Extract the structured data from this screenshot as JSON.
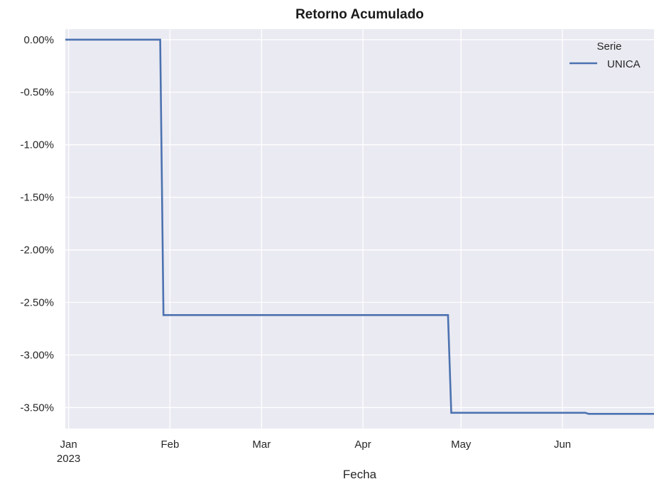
{
  "chart_data": {
    "type": "line",
    "title": "Retorno Acumulado",
    "xlabel": "Fecha",
    "ylabel": "",
    "x_ticks": [
      {
        "date": "2023-01-01",
        "label": "Jan",
        "sublabel": "2023"
      },
      {
        "date": "2023-02-01",
        "label": "Feb",
        "sublabel": ""
      },
      {
        "date": "2023-03-01",
        "label": "Mar",
        "sublabel": ""
      },
      {
        "date": "2023-04-01",
        "label": "Apr",
        "sublabel": ""
      },
      {
        "date": "2023-05-01",
        "label": "May",
        "sublabel": ""
      },
      {
        "date": "2023-06-01",
        "label": "Jun",
        "sublabel": ""
      }
    ],
    "y_ticks": [
      0.0,
      -0.5,
      -1.0,
      -1.5,
      -2.0,
      -2.5,
      -3.0,
      -3.5
    ],
    "y_tick_labels": [
      "0.00%",
      "-0.50%",
      "-1.00%",
      "-1.50%",
      "-2.00%",
      "-2.50%",
      "-3.00%",
      "-3.50%"
    ],
    "xlim": [
      "2022-12-31",
      "2023-06-29"
    ],
    "ylim": [
      -3.7,
      0.1
    ],
    "grid": true,
    "legend": {
      "title": "Serie",
      "placement": "top-right"
    },
    "series": [
      {
        "name": "UNICA",
        "color": "#4c72b0",
        "x": [
          "2022-12-31",
          "2023-01-29",
          "2023-01-30",
          "2023-04-27",
          "2023-04-28",
          "2023-06-08",
          "2023-06-09",
          "2023-06-29"
        ],
        "y": [
          0.0,
          0.0,
          -2.62,
          -2.62,
          -3.55,
          -3.55,
          -3.56,
          -3.56
        ]
      }
    ]
  }
}
